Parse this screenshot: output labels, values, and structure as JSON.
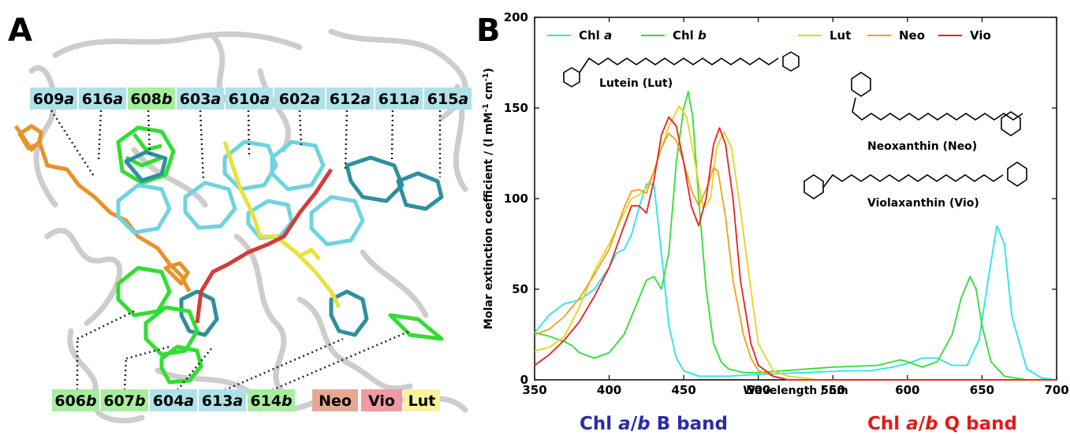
{
  "panel_a": {
    "label": "A",
    "top_labels": [
      {
        "num": "609",
        "suffix": "a",
        "kind": "a"
      },
      {
        "num": "616",
        "suffix": "a",
        "kind": "a"
      },
      {
        "num": "608",
        "suffix": "b",
        "kind": "b"
      },
      {
        "num": "603",
        "suffix": "a",
        "kind": "a"
      },
      {
        "num": "610",
        "suffix": "a",
        "kind": "a"
      },
      {
        "num": "602",
        "suffix": "a",
        "kind": "a"
      },
      {
        "num": "612",
        "suffix": "a",
        "kind": "a"
      },
      {
        "num": "611",
        "suffix": "a",
        "kind": "a"
      },
      {
        "num": "615",
        "suffix": "a",
        "kind": "a"
      }
    ],
    "bottom_labels": [
      {
        "num": "606",
        "suffix": "b",
        "kind": "b"
      },
      {
        "num": "607",
        "suffix": "b",
        "kind": "b"
      },
      {
        "num": "604",
        "suffix": "a",
        "kind": "a"
      },
      {
        "num": "613",
        "suffix": "a",
        "kind": "a"
      },
      {
        "num": "614",
        "suffix": "b",
        "kind": "b"
      },
      {
        "num": "Neo",
        "suffix": "",
        "kind": "neo"
      },
      {
        "num": "Vio",
        "suffix": "",
        "kind": "vio"
      },
      {
        "num": "Lut",
        "suffix": "",
        "kind": "lut"
      }
    ],
    "colors": {
      "a": "#aee2ea",
      "b": "#a6ee9e",
      "neo": "#e6a892",
      "vio": "#f09aa4",
      "lut": "#f7f39a",
      "chl_a_mol": "#6fd3e0",
      "chl_a_dark": "#2f8f9e",
      "chl_b_mol": "#33cc33",
      "lut_mol": "#e8e23a",
      "neo_mol": "#e8922a",
      "vio_mol": "#d63a3a",
      "protein": "#c8c8c8"
    }
  },
  "panel_b": {
    "label": "B",
    "ylabel_parts": [
      "Molar extinction coefficient / (l mM",
      "-1",
      " cm",
      "-1",
      ")"
    ],
    "band_labels": {
      "b_band": [
        "Chl ",
        "a",
        "/",
        "b",
        " B band"
      ],
      "q_band": [
        "Chl ",
        "a",
        "/",
        "b",
        " Q band"
      ]
    },
    "band_colors": {
      "b_band": "#2a2aaa",
      "q_band": "#e81818"
    },
    "structure_labels": [
      "Lutein (Lut)",
      "Neoxanthin (Neo)",
      "Violaxanthin (Vio)"
    ],
    "legend_items": [
      {
        "parts": [
          "Chl ",
          "a"
        ],
        "color": "#22e5f0"
      },
      {
        "parts": [
          "Chl ",
          "b"
        ],
        "color": "#33dd33"
      },
      {
        "parts": [
          "Lut",
          ""
        ],
        "color": "#e8d21a"
      },
      {
        "parts": [
          "Neo",
          ""
        ],
        "color": "#f0a018"
      },
      {
        "parts": [
          "Vio",
          ""
        ],
        "color": "#e82020"
      }
    ]
  },
  "chart_data": {
    "type": "line",
    "xlabel": "Wavelength / nm",
    "ylabel": "Molar extinction coefficient / (l mM-1 cm-1)",
    "xlim": [
      350,
      700
    ],
    "ylim": [
      0,
      200
    ],
    "xticks": [
      350,
      400,
      450,
      500,
      550,
      600,
      650,
      700
    ],
    "yticks": [
      0,
      50,
      100,
      150,
      200
    ],
    "grid": false,
    "legend": "top",
    "series": [
      {
        "name": "Chl a",
        "color": "#22e5f0",
        "x": [
          350,
          360,
          370,
          380,
          390,
          400,
          405,
          410,
          415,
          420,
          425,
          430,
          435,
          440,
          445,
          450,
          460,
          480,
          500,
          530,
          560,
          575,
          590,
          600,
          610,
          620,
          630,
          640,
          648,
          655,
          660,
          665,
          670,
          680,
          690,
          700
        ],
        "y": [
          26,
          36,
          42,
          44,
          50,
          62,
          70,
          72,
          80,
          95,
          108,
          108,
          70,
          30,
          12,
          5,
          2,
          2,
          3,
          4,
          5,
          5,
          7,
          9,
          12,
          12,
          8,
          8,
          22,
          60,
          85,
          75,
          35,
          6,
          1,
          0
        ]
      },
      {
        "name": "Chl b",
        "color": "#33dd33",
        "x": [
          350,
          360,
          370,
          375,
          380,
          390,
          400,
          410,
          420,
          425,
          430,
          435,
          440,
          445,
          450,
          453,
          456,
          460,
          465,
          470,
          475,
          480,
          490,
          500,
          550,
          580,
          595,
          600,
          610,
          620,
          630,
          636,
          642,
          646,
          650,
          656,
          665,
          680,
          700
        ],
        "y": [
          26,
          24,
          21,
          19,
          15,
          12,
          15,
          25,
          45,
          55,
          57,
          50,
          70,
          120,
          150,
          159,
          145,
          100,
          50,
          20,
          10,
          6,
          4,
          4,
          7,
          8,
          11,
          10,
          7,
          10,
          25,
          45,
          57,
          50,
          30,
          10,
          2,
          0,
          0
        ]
      },
      {
        "name": "Lut",
        "color": "#e8d21a",
        "x": [
          350,
          360,
          370,
          380,
          390,
          400,
          410,
          415,
          420,
          425,
          430,
          440,
          447,
          452,
          458,
          463,
          468,
          472,
          477,
          482,
          487,
          495,
          500,
          510,
          520,
          540,
          560,
          600,
          700
        ],
        "y": [
          16,
          18,
          24,
          40,
          60,
          75,
          92,
          100,
          102,
          106,
          115,
          140,
          151,
          145,
          118,
          95,
          100,
          128,
          137,
          128,
          100,
          50,
          20,
          5,
          2,
          0,
          0,
          0,
          0
        ]
      },
      {
        "name": "Neo",
        "color": "#f0a018",
        "x": [
          350,
          360,
          370,
          380,
          390,
          400,
          410,
          415,
          420,
          425,
          430,
          435,
          440,
          445,
          450,
          455,
          460,
          465,
          470,
          473,
          478,
          483,
          490,
          495,
          500,
          510,
          520,
          540,
          560,
          600,
          700
        ],
        "y": [
          25,
          28,
          35,
          45,
          58,
          72,
          95,
          104,
          105,
          103,
          115,
          128,
          136,
          132,
          120,
          105,
          96,
          105,
          117,
          115,
          90,
          55,
          25,
          12,
          5,
          2,
          0,
          0,
          0,
          0,
          0
        ]
      },
      {
        "name": "Vio",
        "color": "#e82020",
        "x": [
          350,
          360,
          370,
          380,
          390,
          400,
          410,
          415,
          420,
          425,
          430,
          435,
          440,
          445,
          450,
          455,
          460,
          465,
          470,
          474,
          478,
          483,
          488,
          495,
          500,
          510,
          520,
          540,
          560,
          600,
          700
        ],
        "y": [
          8,
          14,
          22,
          32,
          46,
          62,
          85,
          96,
          96,
          92,
          110,
          135,
          145,
          140,
          120,
          96,
          85,
          100,
          130,
          139,
          130,
          100,
          55,
          20,
          8,
          2,
          0,
          0,
          0,
          0,
          0
        ]
      }
    ]
  }
}
